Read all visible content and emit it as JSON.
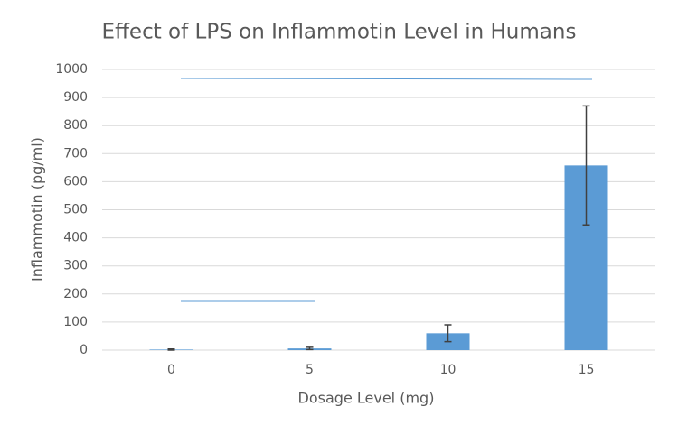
{
  "chart_data": {
    "type": "bar",
    "title": "Effect of LPS on Inflammotin Level in Humans",
    "x_label": "Dosage Level (mg)",
    "y_label": "Inflammotin (pg/ml)",
    "categories": [
      "0",
      "5",
      "10",
      "15"
    ],
    "values": [
      2,
      6,
      60,
      658
    ],
    "errors": [
      2,
      4,
      30,
      212
    ],
    "color": "#5b9bd5",
    "ylim": [
      0,
      1000
    ],
    "yticks": [
      0,
      100,
      200,
      300,
      400,
      500,
      600,
      700,
      800,
      900,
      1000
    ],
    "grid": true
  }
}
